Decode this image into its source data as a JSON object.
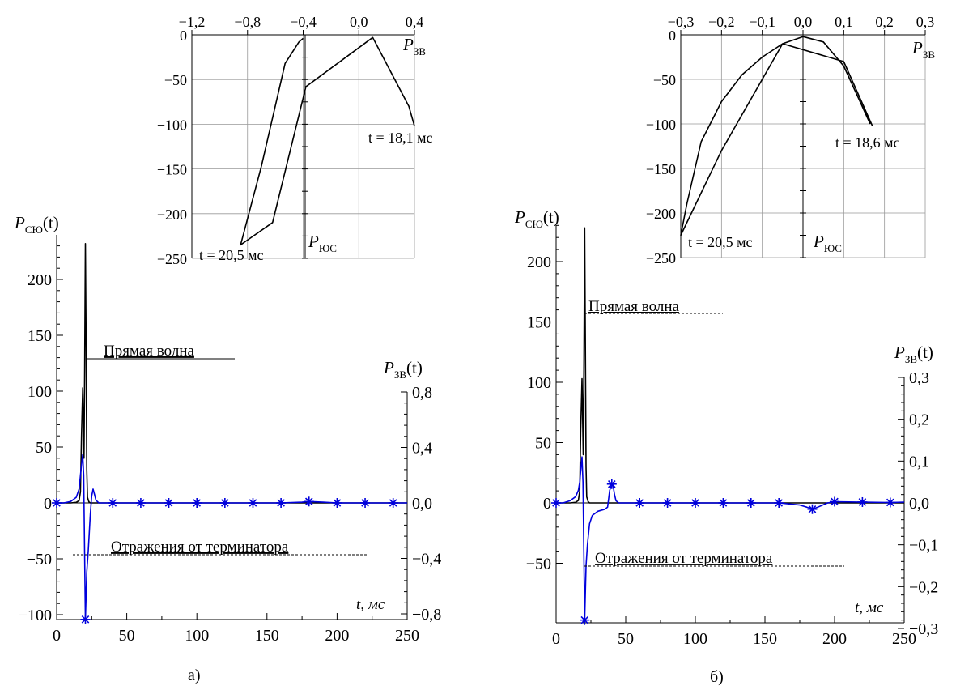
{
  "panels": [
    {
      "caption": "а)",
      "main": {
        "ylabel_left": "P",
        "ylabel_left_sub": "СЮ",
        "ylabel_left_arg": "(t)",
        "ylabel_right": "P",
        "ylabel_right_sub": "ЗВ",
        "ylabel_right_arg": "(t)",
        "xlabel": "t, мс",
        "annotation_direct": "Прямая волна",
        "annotation_reflect": "Отражения от терминатора"
      },
      "inset": {
        "xlabel": "P",
        "xlabel_sub": "ЗВ",
        "ylabel": "P",
        "ylabel_sub": "ЮС",
        "t_start_label": "t = 18,1 мс",
        "t_end_label": "t = 20,5 мс"
      }
    },
    {
      "caption": "б)",
      "main": {
        "ylabel_left": "P",
        "ylabel_left_sub": "СЮ",
        "ylabel_left_arg": "(t)",
        "ylabel_right": "P",
        "ylabel_right_sub": "ЗВ",
        "ylabel_right_arg": "(t)",
        "xlabel": "t, мс",
        "annotation_direct": "Прямая волна",
        "annotation_reflect": "Отражения от терминатора"
      },
      "inset": {
        "xlabel": "P",
        "xlabel_sub": "ЗВ",
        "ylabel": "P",
        "ylabel_sub": "ЮС",
        "t_start_label": "t = 18,6 мс",
        "t_end_label": "t = 20,5 мс"
      }
    }
  ],
  "chart_data": [
    {
      "type": "line",
      "panel": "а)",
      "xlabel": "t, мс",
      "ylabel": "P_СЮ(t)",
      "ylabel_right": "P_ЗВ(t)",
      "xlim": [
        0,
        250
      ],
      "ylim": [
        -105,
        235
      ],
      "ylim_right": [
        -0.84,
        0.8
      ],
      "xticks": [
        0,
        50,
        100,
        150,
        200,
        250
      ],
      "xtick_labels": [
        "0",
        "50",
        "100",
        "150",
        "200",
        "250"
      ],
      "yticks": [
        -100,
        -50,
        0,
        50,
        100,
        150,
        200
      ],
      "ytick_labels": [
        "−100",
        "−50",
        "0",
        "50",
        "100",
        "150",
        "200"
      ],
      "yticks_right": [
        -0.8,
        -0.4,
        0.0,
        0.4,
        0.8
      ],
      "ytick_labels_right": [
        "−0,8",
        "−0,4",
        "0,0",
        "0,4",
        "0,8"
      ],
      "series": [
        {
          "color": "#000000",
          "axis": "left",
          "x": [
            0,
            10,
            14,
            16,
            17,
            17.7,
            18.6,
            19.5,
            20,
            20.5,
            21,
            21.5,
            22,
            23,
            24,
            26,
            30,
            40,
            100,
            250
          ],
          "y": [
            0,
            0,
            0.5,
            2,
            10,
            60,
            103,
            40,
            120,
            232,
            140,
            30,
            5,
            1,
            0,
            0,
            0,
            0,
            0,
            0
          ]
        },
        {
          "color": "#0000dd",
          "axis": "right",
          "marker": "asterisk",
          "x": [
            0,
            5,
            10,
            14,
            16,
            17,
            18,
            18.6,
            19.3,
            20.5,
            21.5,
            22.5,
            24,
            25,
            26,
            27,
            28,
            30,
            35,
            40,
            60,
            80,
            100,
            120,
            140,
            160,
            175,
            180,
            190,
            200,
            220,
            240,
            250
          ],
          "y": [
            0,
            0,
            0.01,
            0.04,
            0.1,
            0.2,
            0.3,
            0.35,
            0.2,
            -0.84,
            -0.5,
            -0.35,
            -0.08,
            0.05,
            0.1,
            0.06,
            0.02,
            0,
            0,
            0,
            0,
            0,
            0,
            0,
            0,
            0,
            0.005,
            0.01,
            0.005,
            0,
            0,
            0,
            0
          ],
          "marker_x": [
            0,
            20.5,
            40,
            60,
            80,
            100,
            120,
            140,
            160,
            180,
            200,
            220,
            240
          ]
        }
      ],
      "annotations": [
        "Прямая волна",
        "Отражения от терминатора"
      ]
    },
    {
      "type": "line",
      "panel": "а) inset",
      "xlabel": "P_ЗВ",
      "ylabel": "P_ЮС",
      "xlim": [
        -1.2,
        0.4
      ],
      "ylim": [
        -250,
        0
      ],
      "xticks": [
        -1.2,
        -0.8,
        -0.4,
        0.0,
        0.4
      ],
      "xtick_labels": [
        "−1,2",
        "−0,8",
        "−0,4",
        "0,0",
        "0,4"
      ],
      "yticks": [
        0,
        -50,
        -100,
        -150,
        -200,
        -250
      ],
      "ytick_labels": [
        "0",
        "−50",
        "−100",
        "−150",
        "−200",
        "−250"
      ],
      "grid": true,
      "series": [
        {
          "color": "#000000",
          "x": [
            0.4,
            0.36,
            0.1,
            -0.38,
            -0.62,
            -0.85,
            -0.7,
            -0.53,
            -0.43,
            -0.4
          ],
          "y": [
            -102,
            -80,
            -3,
            -58,
            -210,
            -235,
            -147,
            -32,
            -8,
            -4
          ]
        }
      ],
      "annotations": [
        "t = 18,1 мс",
        "t = 20,5 мс"
      ]
    },
    {
      "type": "line",
      "panel": "б)",
      "xlabel": "t, мс",
      "ylabel": "P_СЮ(t)",
      "ylabel_right": "P_ЗВ(t)",
      "xlim": [
        0,
        250
      ],
      "ylim": [
        -105,
        232
      ],
      "ylim_right": [
        -0.28,
        0.3
      ],
      "xticks": [
        0,
        50,
        100,
        150,
        200,
        250
      ],
      "xtick_labels": [
        "0",
        "50",
        "100",
        "150",
        "200",
        "250"
      ],
      "yticks": [
        -50,
        0,
        50,
        100,
        150,
        200
      ],
      "ytick_labels": [
        "−50",
        "0",
        "50",
        "100",
        "150",
        "200"
      ],
      "yticks_right": [
        -0.3,
        -0.2,
        -0.1,
        0.0,
        0.1,
        0.2,
        0.3
      ],
      "ytick_labels_right": [
        "−0,3",
        "−0,2",
        "−0,1",
        "0,0",
        "0,1",
        "0,2",
        "0,3"
      ],
      "series": [
        {
          "color": "#000000",
          "axis": "left",
          "x": [
            0,
            10,
            14,
            16,
            17,
            17.7,
            18.6,
            19.5,
            20,
            20.5,
            21,
            21.5,
            22,
            23,
            24,
            26,
            30,
            40,
            100,
            250
          ],
          "y": [
            0,
            0,
            0.5,
            2,
            10,
            60,
            103,
            40,
            120,
            228,
            140,
            30,
            5,
            1,
            0,
            0,
            0,
            0,
            0,
            0
          ]
        },
        {
          "color": "#0000dd",
          "axis": "right",
          "marker": "asterisk",
          "x": [
            0,
            5,
            10,
            14,
            16,
            17,
            18,
            18.6,
            19.3,
            20.5,
            21.5,
            22.5,
            24,
            26,
            30,
            35,
            37,
            38.5,
            40,
            41,
            42,
            43,
            45,
            50,
            60,
            80,
            100,
            120,
            140,
            160,
            175,
            180,
            184,
            188,
            195,
            200,
            220,
            240,
            250
          ],
          "y": [
            0,
            0,
            0.005,
            0.015,
            0.03,
            0.05,
            0.09,
            0.11,
            0.05,
            -0.28,
            -0.15,
            -0.1,
            -0.05,
            -0.03,
            -0.02,
            -0.015,
            -0.01,
            0.03,
            0.045,
            0.04,
            0.02,
            0.005,
            0,
            0,
            0,
            0,
            0,
            0,
            0,
            0,
            -0.005,
            -0.01,
            -0.015,
            -0.01,
            0,
            0.003,
            0.002,
            0.001,
            0.002
          ],
          "marker_x": [
            0,
            20.5,
            40,
            60,
            80,
            100,
            120,
            140,
            160,
            184,
            200,
            220,
            240
          ]
        }
      ],
      "annotations": [
        "Прямая волна",
        "Отражения от терминатора"
      ]
    },
    {
      "type": "line",
      "panel": "б) inset",
      "xlabel": "P_ЗВ",
      "ylabel": "P_ЮС",
      "xlim": [
        -0.3,
        0.3
      ],
      "ylim": [
        -250,
        0
      ],
      "xticks": [
        -0.3,
        -0.2,
        -0.1,
        0.0,
        0.1,
        0.2,
        0.3
      ],
      "xtick_labels": [
        "−0,3",
        "−0,2",
        "−0,1",
        "0,0",
        "0,1",
        "0,2",
        "0,3"
      ],
      "yticks": [
        0,
        -50,
        -100,
        -150,
        -200,
        -250
      ],
      "ytick_labels": [
        "0",
        "−50",
        "−100",
        "−150",
        "−200",
        "−250"
      ],
      "grid": true,
      "series": [
        {
          "color": "#000000",
          "x": [
            0.17,
            0.1,
            -0.05,
            -0.2,
            -0.3,
            -0.285,
            -0.25,
            -0.2,
            -0.15,
            -0.1,
            -0.05,
            0,
            0.05,
            0.1,
            0.14,
            0.165
          ],
          "y": [
            -102,
            -30,
            -10,
            -130,
            -225,
            -190,
            -120,
            -75,
            -45,
            -25,
            -10,
            -2,
            -8,
            -35,
            -75,
            -100
          ]
        }
      ],
      "annotations": [
        "t = 18,6 мс",
        "t = 20,5 мс"
      ]
    }
  ]
}
